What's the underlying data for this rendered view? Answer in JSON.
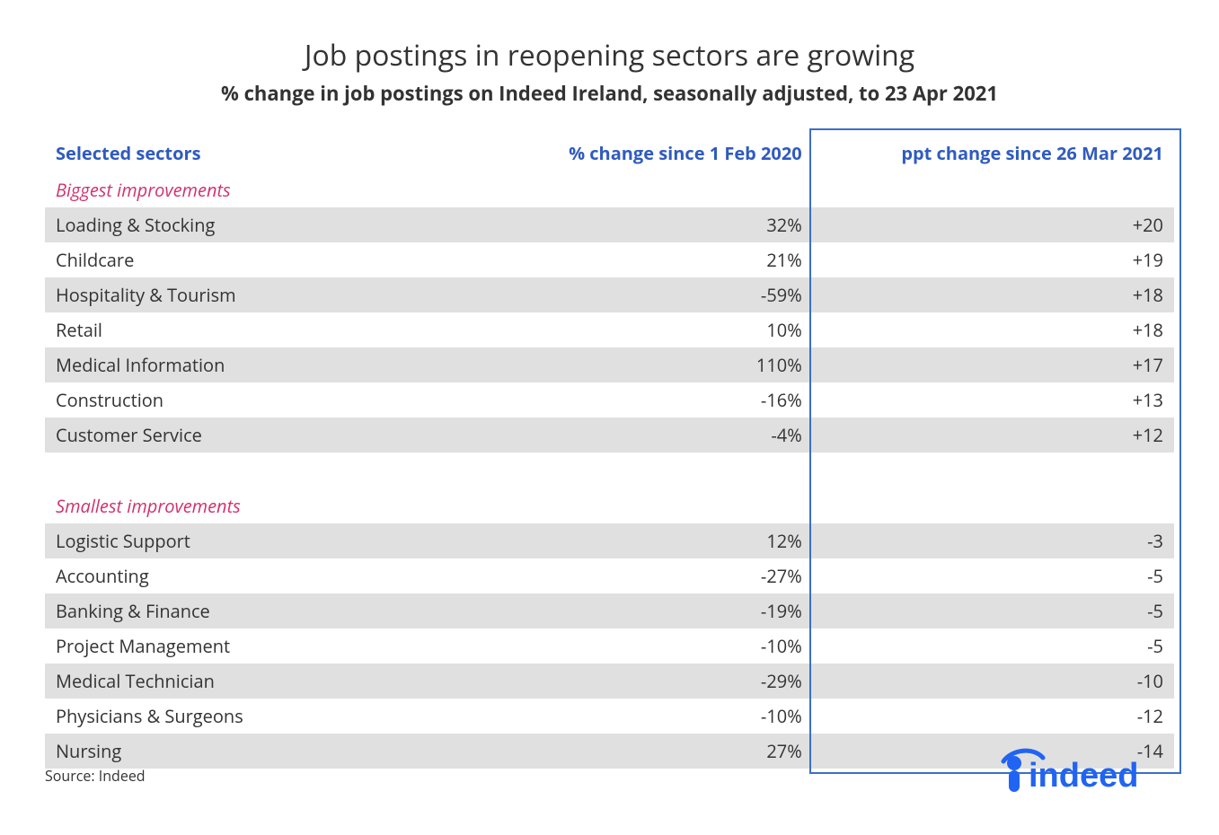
{
  "title": "Job postings in reopening sectors are growing",
  "subtitle": "% change in job postings on Indeed Ireland, seasonally adjusted, to 23 Apr 2021",
  "columns": {
    "sector": "Selected sectors",
    "pct": "% change since 1 Feb 2020",
    "ppt": "ppt change since 26 Mar 2021"
  },
  "sections": [
    {
      "label": "Biggest improvements",
      "rows": [
        {
          "sector": "Loading & Stocking",
          "pct": "32%",
          "ppt": "+20"
        },
        {
          "sector": "Childcare",
          "pct": "21%",
          "ppt": "+19"
        },
        {
          "sector": "Hospitality & Tourism",
          "pct": "-59%",
          "ppt": "+18"
        },
        {
          "sector": "Retail",
          "pct": "10%",
          "ppt": "+18"
        },
        {
          "sector": "Medical Information",
          "pct": "110%",
          "ppt": "+17"
        },
        {
          "sector": "Construction",
          "pct": "-16%",
          "ppt": "+13"
        },
        {
          "sector": "Customer Service",
          "pct": "-4%",
          "ppt": "+12"
        }
      ]
    },
    {
      "label": "Smallest improvements",
      "rows": [
        {
          "sector": "Logistic Support",
          "pct": "12%",
          "ppt": "-3"
        },
        {
          "sector": "Accounting",
          "pct": "-27%",
          "ppt": "-5"
        },
        {
          "sector": "Banking & Finance",
          "pct": "-19%",
          "ppt": "-5"
        },
        {
          "sector": "Project Management",
          "pct": "-10%",
          "ppt": "-5"
        },
        {
          "sector": "Medical Technician",
          "pct": "-29%",
          "ppt": "-10"
        },
        {
          "sector": "Physicians & Surgeons",
          "pct": "-10%",
          "ppt": "-12"
        },
        {
          "sector": "Nursing",
          "pct": "27%",
          "ppt": "-14"
        }
      ]
    }
  ],
  "source": "Source: Indeed",
  "logo_text": "indeed",
  "style": {
    "type": "table",
    "background_color": "#ffffff",
    "band_color": "#e0e0e0",
    "header_color": "#2f5bbf",
    "section_label_color": "#d1326f",
    "highlight_border_color": "#3a6fc9",
    "text_color": "#333333",
    "logo_color": "#2164f3",
    "title_fontsize": 32,
    "subtitle_fontsize": 22,
    "body_fontsize": 20,
    "highlight_column_index": 2,
    "col_widths_pct": [
      40,
      28,
      32
    ]
  }
}
